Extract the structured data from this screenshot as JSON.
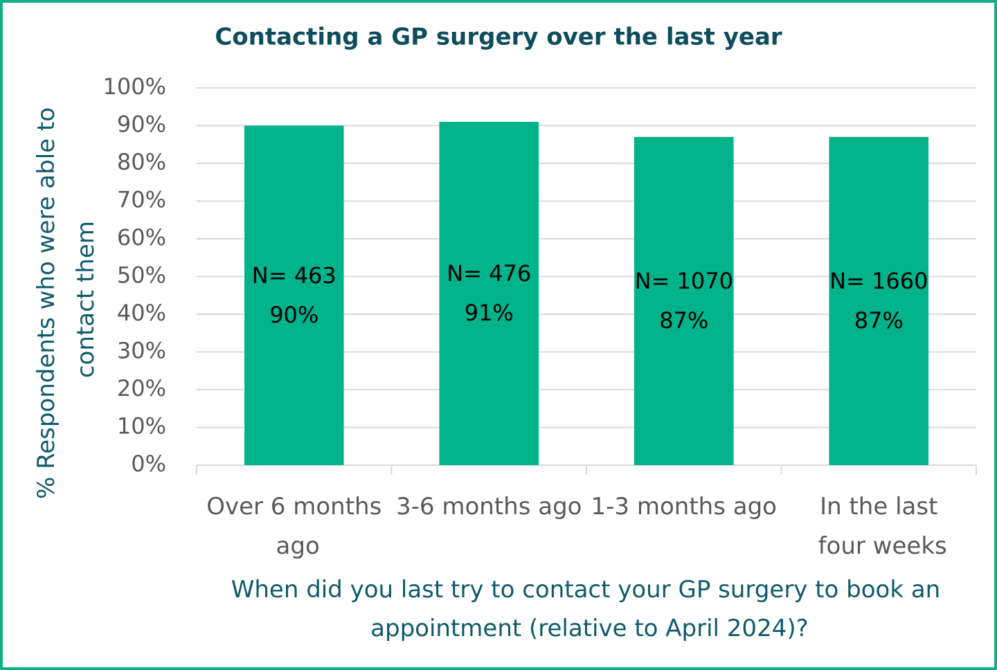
{
  "chart_data": {
    "type": "bar",
    "title": "Contacting a GP surgery over the last year",
    "y_axis_label": "% Respondents who were able to contact them",
    "x_axis_label": "When did you last try to contact your GP surgery to book an appointment (relative to April 2024)?",
    "categories": [
      "Over 6 months ago",
      "3-6 months ago",
      "1-3 months ago",
      "In the last four weeks"
    ],
    "values": [
      90,
      91,
      87,
      87
    ],
    "value_labels": [
      "90%",
      "91%",
      "87%",
      "87%"
    ],
    "n_labels": [
      "N= 463",
      "N= 476",
      "N= 1070",
      "N= 1660"
    ],
    "color": "#00b38a",
    "ylim": [
      0,
      100
    ],
    "yticks": [
      {
        "value": 0,
        "label": "0%"
      },
      {
        "value": 10,
        "label": "10%"
      },
      {
        "value": 20,
        "label": "20%"
      },
      {
        "value": 30,
        "label": "30%"
      },
      {
        "value": 40,
        "label": "40%"
      },
      {
        "value": 50,
        "label": "50%"
      },
      {
        "value": 60,
        "label": "60%"
      },
      {
        "value": 70,
        "label": "70%"
      },
      {
        "value": 80,
        "label": "80%"
      },
      {
        "value": 90,
        "label": "90%"
      },
      {
        "value": 100,
        "label": "100%"
      }
    ],
    "grid": true
  }
}
